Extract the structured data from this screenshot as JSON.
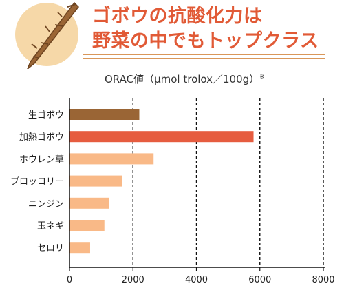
{
  "header": {
    "title_line1": "ゴボウの抗酸化力は",
    "title_line2": "野菜の中でもトップクラス",
    "illustration_icon": "burdock-root-icon"
  },
  "unit_label": "ORAC値（μmol trolox／100g）",
  "footnote_mark": "※",
  "colors": {
    "title": "#e15a36",
    "bar_dark": "#9a6535",
    "bar_highlight": "#e65c3f",
    "bar_light": "#f9b987",
    "badge": "#f6d8a8"
  },
  "chart_data": {
    "type": "bar",
    "orientation": "horizontal",
    "categories": [
      "生ゴボウ",
      "加熱ゴボウ",
      "ホウレン草",
      "ブロッコリー",
      "ニンジン",
      "玉ネギ",
      "セロリ"
    ],
    "values": [
      2200,
      5800,
      2650,
      1650,
      1250,
      1100,
      650
    ],
    "bar_colors": [
      "#9a6535",
      "#e65c3f",
      "#f9b987",
      "#f9b987",
      "#f9b987",
      "#f9b987",
      "#f9b987"
    ],
    "xlim": [
      0,
      8000
    ],
    "xticks": [
      0,
      2000,
      4000,
      6000,
      8000
    ],
    "xlabel": "",
    "ylabel": "",
    "grid": "vertical dashed"
  }
}
